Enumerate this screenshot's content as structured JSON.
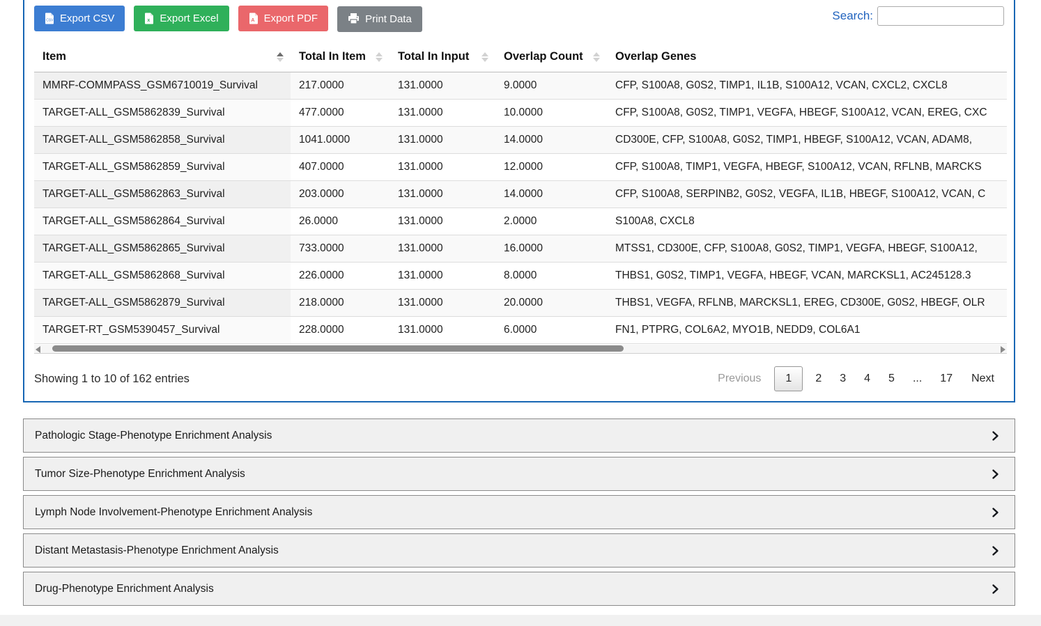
{
  "toolbar": {
    "buttons": [
      {
        "label": "Export CSV",
        "icon": "file-csv-icon",
        "color": "#3c7dd2"
      },
      {
        "label": "Export Excel",
        "icon": "file-excel-icon",
        "color": "#2fb05a"
      },
      {
        "label": "Export PDF",
        "icon": "file-pdf-icon",
        "color": "#ea676b"
      },
      {
        "label": "Print Data",
        "icon": "printer-icon",
        "color": "#7b8186"
      }
    ],
    "search_label": "Search:",
    "search_value": ""
  },
  "table": {
    "columns": [
      {
        "label": "Item",
        "sort": "asc",
        "key": "item"
      },
      {
        "label": "Total In Item",
        "sort": "none",
        "key": "tii"
      },
      {
        "label": "Total In Input",
        "sort": "none",
        "key": "tin"
      },
      {
        "label": "Overlap Count",
        "sort": "none",
        "key": "oc"
      },
      {
        "label": "Overlap Genes",
        "sort": null,
        "key": "genes"
      }
    ],
    "rows": [
      [
        "MMRF-COMMPASS_GSM6710019_Survival",
        "217.0000",
        "131.0000",
        "9.0000",
        "CFP, S100A8, G0S2, TIMP1, IL1B, S100A12, VCAN, CXCL2, CXCL8"
      ],
      [
        "TARGET-ALL_GSM5862839_Survival",
        "477.0000",
        "131.0000",
        "10.0000",
        "CFP, S100A8, G0S2, TIMP1, VEGFA, HBEGF, S100A12, VCAN, EREG, CXC"
      ],
      [
        "TARGET-ALL_GSM5862858_Survival",
        "1041.0000",
        "131.0000",
        "14.0000",
        "CD300E, CFP, S100A8, G0S2, TIMP1, HBEGF, S100A12, VCAN, ADAM8,"
      ],
      [
        "TARGET-ALL_GSM5862859_Survival",
        "407.0000",
        "131.0000",
        "12.0000",
        "CFP, S100A8, TIMP1, VEGFA, HBEGF, S100A12, VCAN, RFLNB, MARCKS"
      ],
      [
        "TARGET-ALL_GSM5862863_Survival",
        "203.0000",
        "131.0000",
        "14.0000",
        "CFP, S100A8, SERPINB2, G0S2, VEGFA, IL1B, HBEGF, S100A12, VCAN, C"
      ],
      [
        "TARGET-ALL_GSM5862864_Survival",
        "26.0000",
        "131.0000",
        "2.0000",
        "S100A8, CXCL8"
      ],
      [
        "TARGET-ALL_GSM5862865_Survival",
        "733.0000",
        "131.0000",
        "16.0000",
        "MTSS1, CD300E, CFP, S100A8, G0S2, TIMP1, VEGFA, HBEGF, S100A12,"
      ],
      [
        "TARGET-ALL_GSM5862868_Survival",
        "226.0000",
        "131.0000",
        "8.0000",
        "THBS1, G0S2, TIMP1, VEGFA, HBEGF, VCAN, MARCKSL1, AC245128.3"
      ],
      [
        "TARGET-ALL_GSM5862879_Survival",
        "218.0000",
        "131.0000",
        "20.0000",
        "THBS1, VEGFA, RFLNB, MARCKSL1, EREG, CD300E, G0S2, HBEGF, OLR"
      ],
      [
        "TARGET-RT_GSM5390457_Survival",
        "228.0000",
        "131.0000",
        "6.0000",
        "FN1, PTPRG, COL6A2, MYO1B, NEDD9, COL6A1"
      ]
    ]
  },
  "footer": {
    "info": "Showing 1 to 10 of 162 entries",
    "pagination": {
      "previous": "Previous",
      "pages": [
        "1",
        "2",
        "3",
        "4",
        "5",
        "...",
        "17"
      ],
      "current": "1",
      "next": "Next"
    }
  },
  "accordion": {
    "items": [
      "Pathologic Stage-Phenotype Enrichment Analysis",
      "Tumor Size-Phenotype Enrichment Analysis",
      "Lymph Node Involvement-Phenotype Enrichment Analysis",
      "Distant Metastasis-Phenotype Enrichment Analysis",
      "Drug-Phenotype Enrichment Analysis"
    ]
  },
  "colors": {
    "panel_border": "#1766b4",
    "search_label": "#2163be",
    "csv_button": "#3c7dd2",
    "excel_button": "#2fb05a",
    "pdf_button": "#ea676b",
    "print_button": "#7b8186"
  }
}
